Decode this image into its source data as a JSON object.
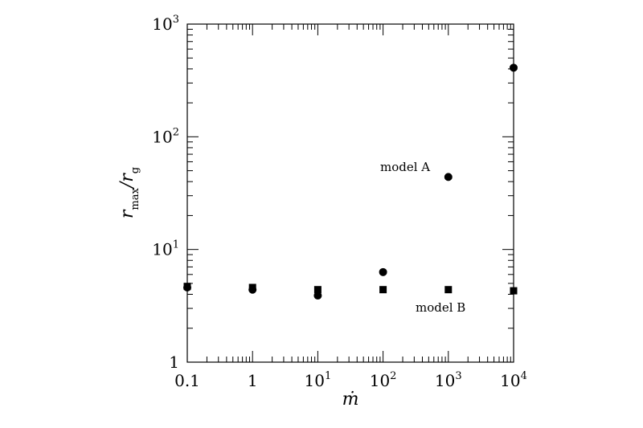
{
  "chart_data": {
    "type": "scatter",
    "x_scale": "log",
    "y_scale": "log",
    "xlim": [
      0.1,
      10000
    ],
    "ylim": [
      1,
      1000
    ],
    "xlabel": "ṁ",
    "ylabel": {
      "main": "r",
      "sub1": "max",
      "slash": "/r",
      "sub2": "g"
    },
    "x_ticks": [
      {
        "value": 0.1,
        "base": "0.1",
        "sup": ""
      },
      {
        "value": 1,
        "base": "1",
        "sup": ""
      },
      {
        "value": 10,
        "base": "10",
        "sup": "1"
      },
      {
        "value": 100,
        "base": "10",
        "sup": "2"
      },
      {
        "value": 1000,
        "base": "10",
        "sup": "3"
      },
      {
        "value": 10000,
        "base": "10",
        "sup": "4"
      }
    ],
    "y_ticks": [
      {
        "value": 1,
        "base": "1",
        "sup": ""
      },
      {
        "value": 10,
        "base": "10",
        "sup": "1"
      },
      {
        "value": 100,
        "base": "10",
        "sup": "2"
      },
      {
        "value": 1000,
        "base": "10",
        "sup": "3"
      }
    ],
    "series": [
      {
        "name": "model A",
        "marker": "circle",
        "points": [
          {
            "x": 0.1,
            "y": 4.6
          },
          {
            "x": 1,
            "y": 4.4
          },
          {
            "x": 10,
            "y": 3.9
          },
          {
            "x": 100,
            "y": 6.3
          },
          {
            "x": 1000,
            "y": 44
          },
          {
            "x": 10000,
            "y": 410
          }
        ]
      },
      {
        "name": "model B",
        "marker": "square",
        "points": [
          {
            "x": 0.1,
            "y": 4.7
          },
          {
            "x": 1,
            "y": 4.6
          },
          {
            "x": 10,
            "y": 4.4
          },
          {
            "x": 100,
            "y": 4.4
          },
          {
            "x": 1000,
            "y": 4.4
          },
          {
            "x": 10000,
            "y": 4.3
          }
        ]
      }
    ],
    "annotations": [
      {
        "text": "model A",
        "x": 100,
        "y": 52
      },
      {
        "text": "model B",
        "x": 220,
        "y": 3.0
      }
    ]
  }
}
